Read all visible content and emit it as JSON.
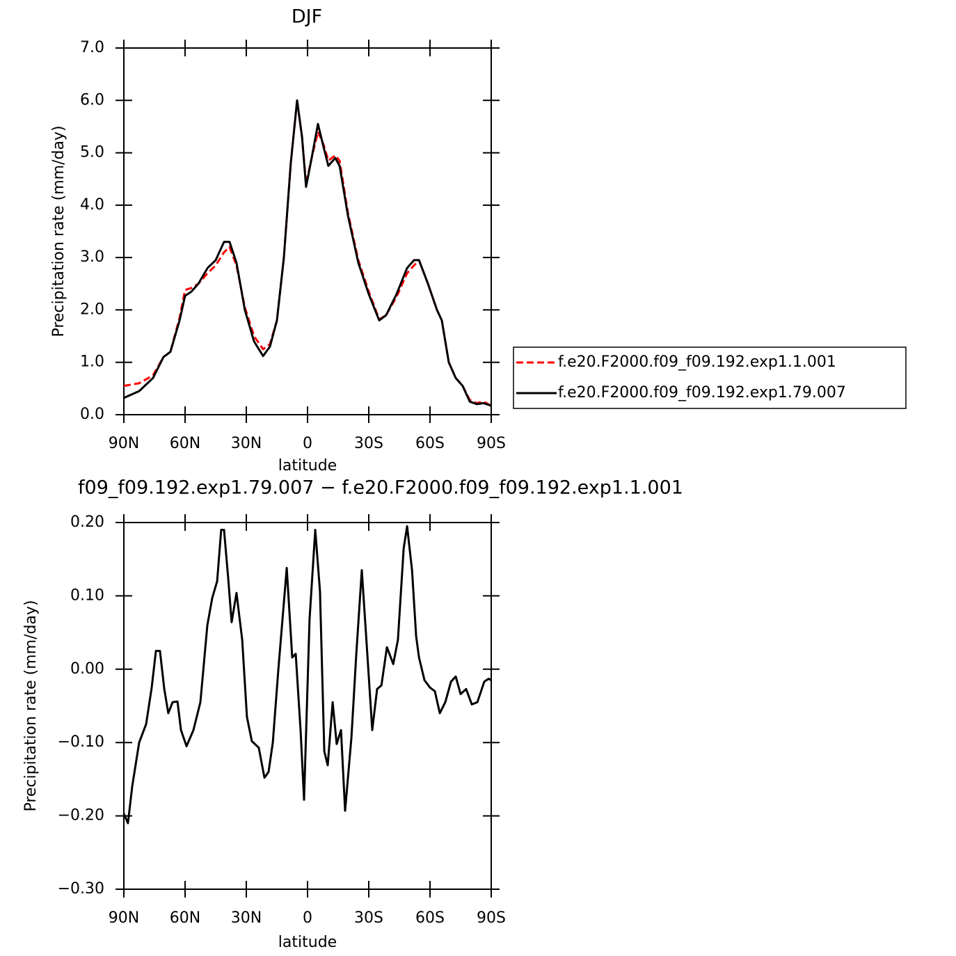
{
  "chart_data": [
    {
      "type": "line",
      "title": "DJF",
      "xlabel": "latitude",
      "ylabel": "Precipitation rate (mm/day)",
      "x": [
        90,
        82.5,
        75.7,
        70.6,
        67.2,
        62.7,
        60,
        56.9,
        53.5,
        49,
        45,
        40.9,
        38.2,
        34.8,
        30.7,
        26.2,
        21.8,
        18.4,
        15,
        11.6,
        8.2,
        5.1,
        2.7,
        0.7,
        -2,
        -5.1,
        -7.9,
        -10.2,
        -13.6,
        -15.7,
        -19.8,
        -24.9,
        -30,
        -35.1,
        -38.5,
        -43.6,
        -48.8,
        -52.2,
        -54.6,
        -59,
        -63.4,
        -65.8,
        -69.2,
        -72.6,
        -76,
        -79.5,
        -82.9,
        -86.3,
        -90
      ],
      "xlim": [
        90,
        -90
      ],
      "xticks": [
        {
          "value": 90,
          "label": "90N"
        },
        {
          "value": 60,
          "label": "60N"
        },
        {
          "value": 30,
          "label": "30N"
        },
        0,
        {
          "value": -30,
          "label": "30S"
        },
        {
          "value": -60,
          "label": "60S"
        },
        {
          "value": -90,
          "label": "90S"
        }
      ],
      "ylim": [
        0,
        7
      ],
      "yticks": [
        {
          "value": 0,
          "label": "0.0"
        },
        {
          "value": 1,
          "label": "1.0"
        },
        {
          "value": 2,
          "label": "2.0"
        },
        {
          "value": 3,
          "label": "3.0"
        },
        {
          "value": 4,
          "label": "4.0"
        },
        {
          "value": 5,
          "label": "5.0"
        },
        {
          "value": 6,
          "label": "6.0"
        },
        {
          "value": 7,
          "label": "7.0"
        }
      ],
      "legend": "outside-right",
      "series": [
        {
          "name": "f.e20.F2000.f09_f09.192.exp1.1.001",
          "color": "#ff0000",
          "line_style": "dashed",
          "values": [
            0.55,
            0.6,
            0.75,
            1.1,
            1.2,
            1.85,
            2.38,
            2.42,
            2.5,
            2.7,
            2.85,
            3.1,
            3.2,
            2.85,
            2.05,
            1.5,
            1.25,
            1.35,
            1.8,
            3.0,
            4.8,
            6.0,
            5.3,
            4.4,
            4.9,
            5.4,
            5.15,
            4.85,
            4.95,
            4.85,
            3.85,
            2.95,
            2.35,
            1.82,
            1.9,
            2.25,
            2.7,
            2.85,
            2.95,
            2.5,
            2.0,
            1.8,
            1.0,
            0.7,
            0.55,
            0.28,
            0.22,
            0.25,
            0.17
          ]
        },
        {
          "name": "f.e20.F2000.f09_f09.192.exp1.79.007",
          "color": "#000000",
          "line_style": "solid",
          "values": [
            0.32,
            0.45,
            0.7,
            1.1,
            1.2,
            1.8,
            2.27,
            2.35,
            2.5,
            2.8,
            2.95,
            3.3,
            3.3,
            2.9,
            2.0,
            1.4,
            1.12,
            1.3,
            1.8,
            3.0,
            4.8,
            6.0,
            5.3,
            4.35,
            4.9,
            5.55,
            5.1,
            4.75,
            4.9,
            4.75,
            3.8,
            2.9,
            2.3,
            1.8,
            1.9,
            2.3,
            2.8,
            2.95,
            2.95,
            2.5,
            2.0,
            1.8,
            1.0,
            0.7,
            0.55,
            0.25,
            0.2,
            0.22,
            0.17
          ]
        }
      ]
    },
    {
      "type": "line",
      "title": "f09_f09.192.exp1.79.007 − f.e20.F2000.f09_f09.192.exp1.1.001",
      "xlabel": "latitude",
      "ylabel": "Precipitation rate (mm/day)",
      "x": [
        90,
        88,
        85.9,
        82.5,
        79.1,
        76.4,
        74.3,
        72.3,
        70.2,
        68.2,
        66.1,
        63.7,
        62,
        59.3,
        55.9,
        52.5,
        49.1,
        46.7,
        44.3,
        42.3,
        40.9,
        38.9,
        37.2,
        34.8,
        32,
        29.7,
        27.3,
        23.9,
        21.1,
        19.1,
        17,
        14.3,
        10.2,
        7.5,
        5.8,
        3.4,
        1.7,
        -1,
        -3.8,
        -6.1,
        -8.2,
        -9.9,
        -12.3,
        -14.3,
        -16.4,
        -18.4,
        -21.5,
        -23.9,
        -26.6,
        -29.3,
        -31.7,
        -34.1,
        -36.2,
        -38.9,
        -42,
        -44.3,
        -47.1,
        -48.8,
        -51.2,
        -53.2,
        -54.6,
        -57.3,
        -60,
        -62.4,
        -64.8,
        -67.5,
        -70.3,
        -72.6,
        -75,
        -77.7,
        -80.5,
        -83.2,
        -86.6,
        -88.7,
        -90
      ],
      "xlim": [
        90,
        -90
      ],
      "xticks": [
        {
          "value": 90,
          "label": "90N"
        },
        {
          "value": 60,
          "label": "60N"
        },
        {
          "value": 30,
          "label": "30N"
        },
        0,
        {
          "value": -30,
          "label": "30S"
        },
        {
          "value": -60,
          "label": "60S"
        },
        {
          "value": -90,
          "label": "90S"
        }
      ],
      "ylim": [
        -0.3,
        0.2
      ],
      "yticks": [
        {
          "value": -0.3,
          "label": "−0.30"
        },
        {
          "value": -0.2,
          "label": "−0.20"
        },
        {
          "value": -0.1,
          "label": "−0.10"
        },
        {
          "value": 0,
          "label": "0.00"
        },
        {
          "value": 0.1,
          "label": "0.10"
        },
        {
          "value": 0.2,
          "label": "0.20"
        }
      ],
      "series": [
        {
          "color": "#000000",
          "line_style": "solid",
          "values": [
            -0.197,
            -0.21,
            -0.16,
            -0.1,
            -0.075,
            -0.026,
            0.025,
            0.025,
            -0.027,
            -0.06,
            -0.045,
            -0.044,
            -0.083,
            -0.105,
            -0.083,
            -0.045,
            0.06,
            0.097,
            0.12,
            0.19,
            0.19,
            0.125,
            0.064,
            0.104,
            0.04,
            -0.065,
            -0.098,
            -0.107,
            -0.148,
            -0.14,
            -0.1,
            0.0,
            0.138,
            0.016,
            0.021,
            -0.083,
            -0.178,
            0.068,
            0.19,
            0.106,
            -0.112,
            -0.131,
            -0.045,
            -0.102,
            -0.083,
            -0.193,
            -0.093,
            0.021,
            0.135,
            0.021,
            -0.083,
            -0.027,
            -0.022,
            0.03,
            0.007,
            0.04,
            0.165,
            0.195,
            0.135,
            0.045,
            0.016,
            -0.015,
            -0.025,
            -0.03,
            -0.06,
            -0.045,
            -0.017,
            -0.01,
            -0.034,
            -0.027,
            -0.048,
            -0.045,
            -0.017,
            -0.013,
            -0.015
          ]
        }
      ]
    }
  ]
}
